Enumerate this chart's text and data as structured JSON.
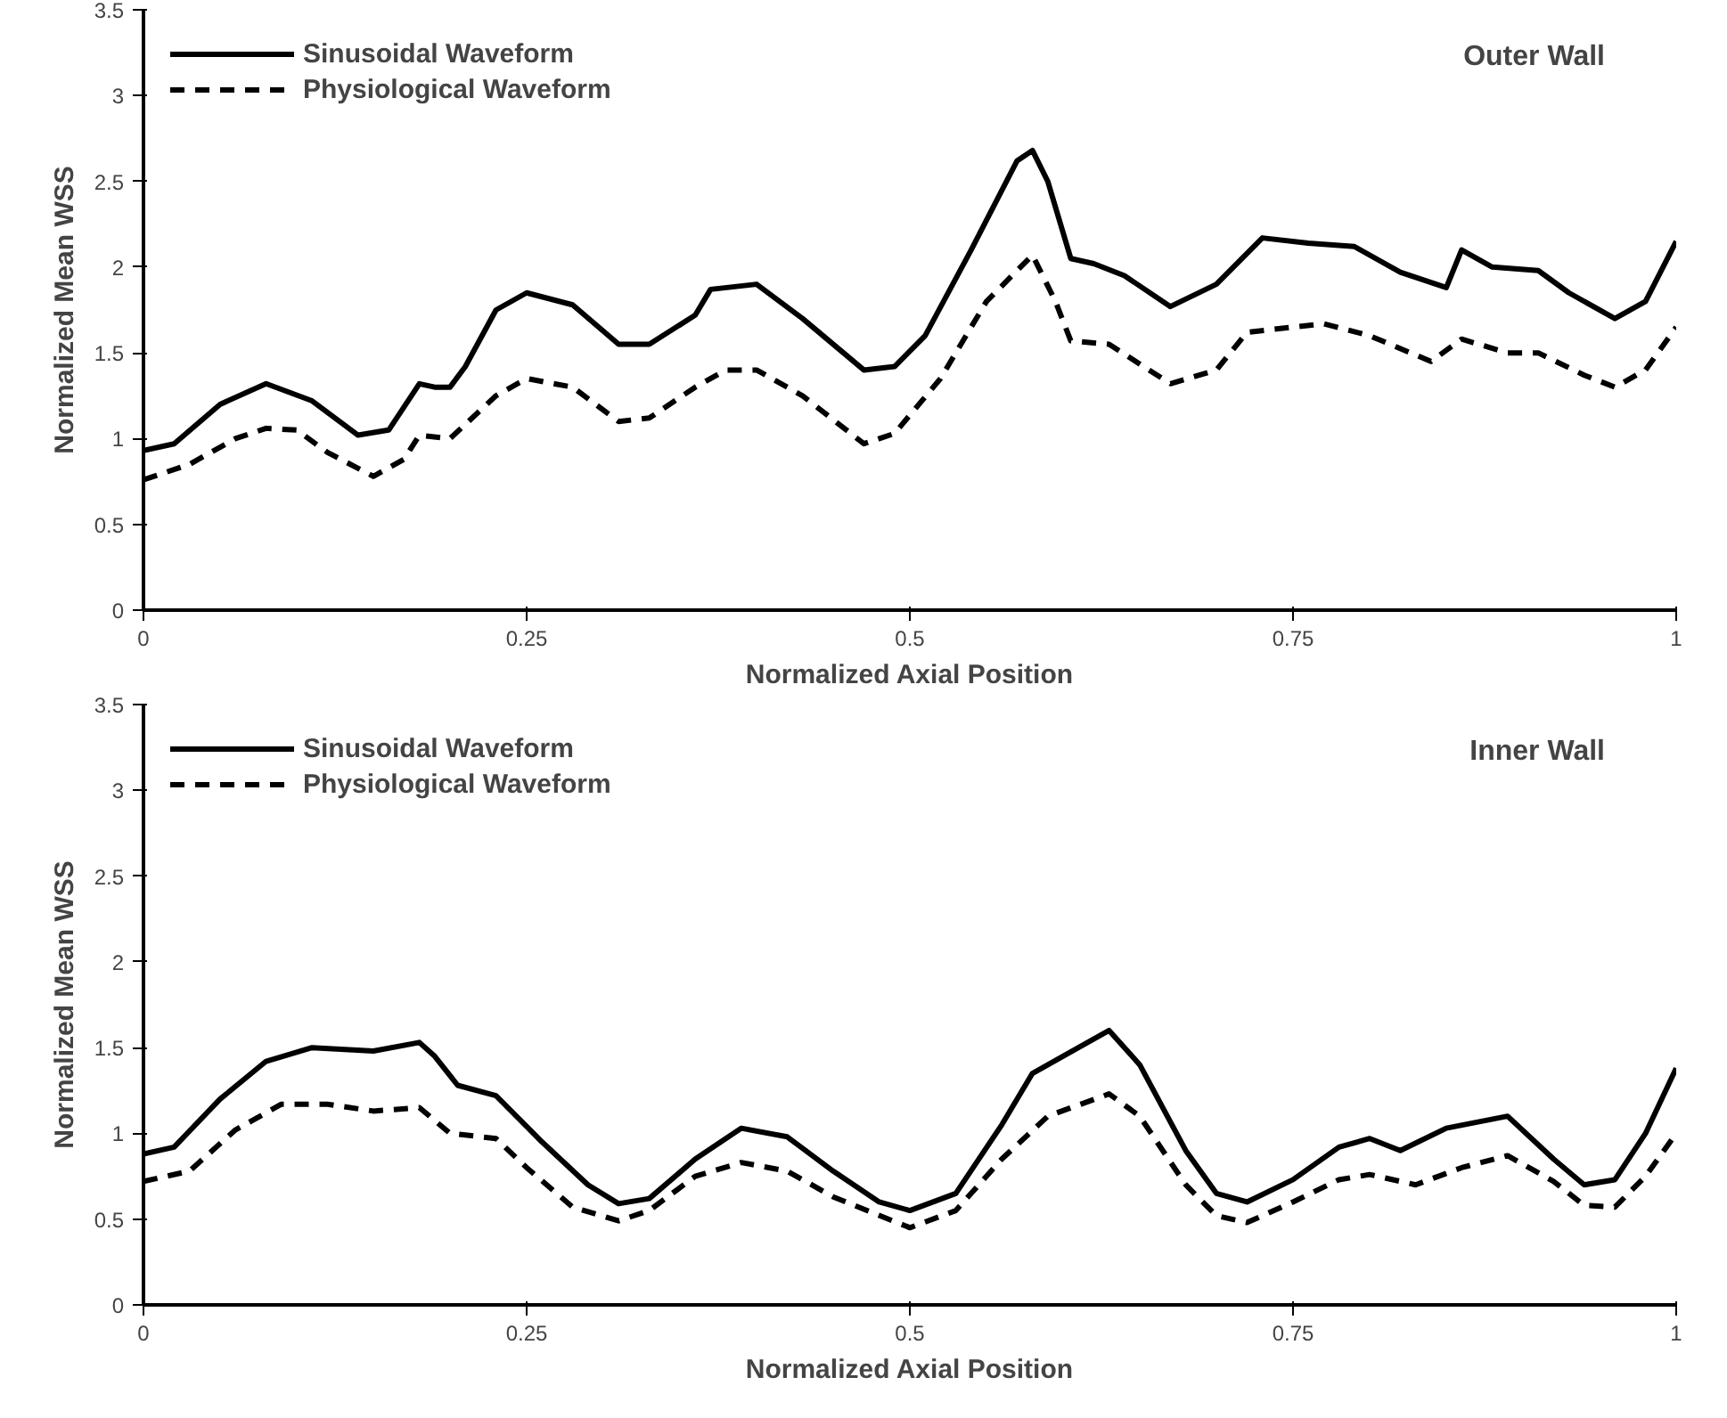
{
  "chart_data": [
    {
      "type": "line",
      "xlabel": "Normalized Axial Position",
      "ylabel": "Normalized Mean WSS",
      "annotations": [
        "Outer Wall"
      ],
      "xlim": [
        0,
        1
      ],
      "xticks": [
        0,
        0.25,
        0.5,
        0.75,
        1
      ],
      "ylim": [
        0,
        3.5
      ],
      "yticks": [
        0,
        0.5,
        1,
        1.5,
        2,
        2.5,
        3,
        3.5
      ],
      "grid": false,
      "legend": "top left",
      "series": [
        {
          "name": "Sinusoidal Waveform",
          "color": "#000000",
          "line_style": "solid",
          "x": [
            0,
            0.02,
            0.05,
            0.08,
            0.11,
            0.14,
            0.16,
            0.18,
            0.19,
            0.2,
            0.21,
            0.23,
            0.25,
            0.28,
            0.31,
            0.33,
            0.36,
            0.37,
            0.4,
            0.43,
            0.47,
            0.49,
            0.51,
            0.54,
            0.57,
            0.58,
            0.59,
            0.605,
            0.62,
            0.64,
            0.67,
            0.7,
            0.73,
            0.76,
            0.79,
            0.82,
            0.85,
            0.86,
            0.88,
            0.91,
            0.93,
            0.96,
            0.98,
            1.0
          ],
          "values": [
            0.93,
            0.97,
            1.2,
            1.32,
            1.22,
            1.02,
            1.05,
            1.32,
            1.3,
            1.3,
            1.42,
            1.75,
            1.85,
            1.78,
            1.55,
            1.55,
            1.72,
            1.87,
            1.9,
            1.7,
            1.4,
            1.42,
            1.6,
            2.1,
            2.62,
            2.68,
            2.5,
            2.05,
            2.02,
            1.95,
            1.77,
            1.9,
            2.17,
            2.14,
            2.12,
            1.97,
            1.88,
            2.1,
            2.0,
            1.98,
            1.85,
            1.7,
            1.8,
            2.15
          ]
        },
        {
          "name": "Physiological Waveform",
          "color": "#000000",
          "line_style": "dashed",
          "x": [
            0,
            0.03,
            0.06,
            0.08,
            0.1,
            0.12,
            0.15,
            0.17,
            0.18,
            0.2,
            0.23,
            0.25,
            0.28,
            0.31,
            0.33,
            0.36,
            0.38,
            0.4,
            0.43,
            0.47,
            0.49,
            0.52,
            0.55,
            0.58,
            0.595,
            0.605,
            0.63,
            0.67,
            0.7,
            0.72,
            0.77,
            0.8,
            0.84,
            0.86,
            0.89,
            0.91,
            0.94,
            0.96,
            0.98,
            1.0
          ],
          "values": [
            0.76,
            0.85,
            1.0,
            1.06,
            1.05,
            0.92,
            0.78,
            0.88,
            1.02,
            1.0,
            1.25,
            1.35,
            1.3,
            1.1,
            1.12,
            1.3,
            1.4,
            1.4,
            1.25,
            0.97,
            1.03,
            1.35,
            1.8,
            2.07,
            1.8,
            1.57,
            1.55,
            1.32,
            1.4,
            1.62,
            1.67,
            1.6,
            1.45,
            1.58,
            1.5,
            1.5,
            1.37,
            1.3,
            1.4,
            1.65
          ]
        }
      ]
    },
    {
      "type": "line",
      "xlabel": "Normalized Axial Position",
      "ylabel": "Normalized Mean WSS",
      "annotations": [
        "Inner Wall"
      ],
      "xlim": [
        0,
        1
      ],
      "xticks": [
        0,
        0.25,
        0.5,
        0.75,
        1
      ],
      "ylim": [
        0,
        3.5
      ],
      "yticks": [
        0,
        0.5,
        1,
        1.5,
        2,
        2.5,
        3,
        3.5
      ],
      "grid": false,
      "legend": "top left",
      "series": [
        {
          "name": "Sinusoidal Waveform",
          "color": "#000000",
          "line_style": "solid",
          "x": [
            0,
            0.02,
            0.05,
            0.08,
            0.11,
            0.15,
            0.18,
            0.19,
            0.205,
            0.23,
            0.26,
            0.29,
            0.31,
            0.33,
            0.36,
            0.39,
            0.42,
            0.45,
            0.48,
            0.5,
            0.53,
            0.56,
            0.58,
            0.61,
            0.63,
            0.65,
            0.68,
            0.7,
            0.72,
            0.75,
            0.78,
            0.8,
            0.82,
            0.85,
            0.89,
            0.92,
            0.94,
            0.96,
            0.98,
            1.0
          ],
          "values": [
            0.88,
            0.92,
            1.2,
            1.42,
            1.5,
            1.48,
            1.53,
            1.45,
            1.28,
            1.22,
            0.95,
            0.7,
            0.59,
            0.62,
            0.85,
            1.03,
            0.98,
            0.78,
            0.6,
            0.55,
            0.65,
            1.05,
            1.35,
            1.5,
            1.6,
            1.4,
            0.9,
            0.65,
            0.6,
            0.73,
            0.92,
            0.97,
            0.9,
            1.03,
            1.1,
            0.85,
            0.7,
            0.73,
            1.0,
            1.38
          ]
        },
        {
          "name": "Physiological Waveform",
          "color": "#000000",
          "line_style": "dashed",
          "x": [
            0,
            0.03,
            0.06,
            0.09,
            0.12,
            0.15,
            0.18,
            0.2,
            0.23,
            0.25,
            0.28,
            0.31,
            0.33,
            0.36,
            0.39,
            0.42,
            0.45,
            0.5,
            0.53,
            0.56,
            0.59,
            0.63,
            0.65,
            0.68,
            0.7,
            0.72,
            0.75,
            0.78,
            0.8,
            0.83,
            0.86,
            0.89,
            0.92,
            0.94,
            0.96,
            0.98,
            1.0
          ],
          "values": [
            0.72,
            0.78,
            1.02,
            1.17,
            1.17,
            1.13,
            1.15,
            1.0,
            0.97,
            0.8,
            0.57,
            0.49,
            0.55,
            0.75,
            0.83,
            0.78,
            0.63,
            0.45,
            0.55,
            0.85,
            1.1,
            1.23,
            1.1,
            0.7,
            0.52,
            0.48,
            0.6,
            0.73,
            0.76,
            0.7,
            0.8,
            0.87,
            0.72,
            0.58,
            0.57,
            0.75,
            1.0
          ]
        }
      ]
    }
  ]
}
